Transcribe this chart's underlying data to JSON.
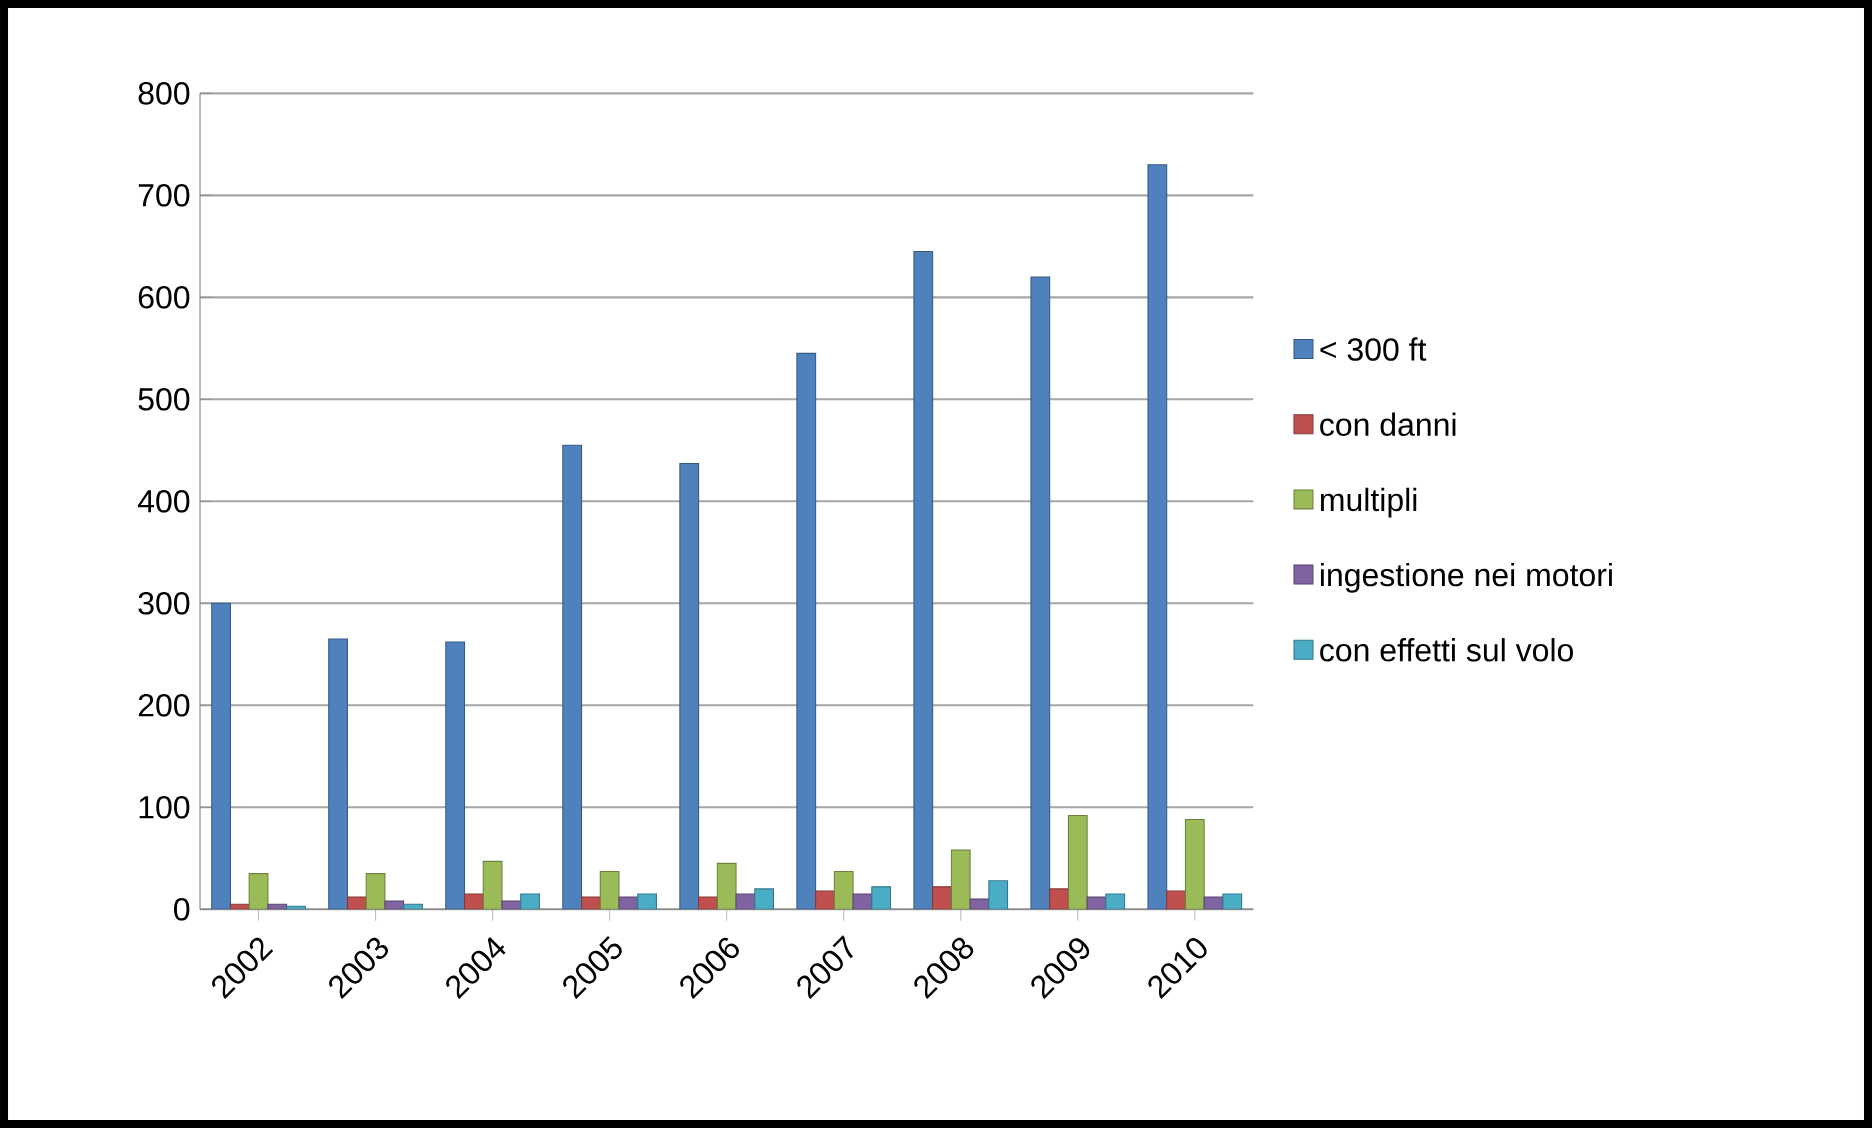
{
  "chart_data": {
    "type": "bar",
    "categories": [
      "2002",
      "2003",
      "2004",
      "2005",
      "2006",
      "2007",
      "2008",
      "2009",
      "2010"
    ],
    "series": [
      {
        "name": "< 300 ft",
        "color": "#4f81bd",
        "values": [
          300,
          265,
          262,
          455,
          437,
          545,
          645,
          620,
          730
        ]
      },
      {
        "name": "con danni",
        "color": "#c0504d",
        "values": [
          5,
          12,
          15,
          12,
          12,
          18,
          22,
          20,
          18
        ]
      },
      {
        "name": "multipli",
        "color": "#9bbb59",
        "values": [
          35,
          35,
          47,
          37,
          45,
          37,
          58,
          92,
          88
        ]
      },
      {
        "name": "ingestione nei motori",
        "color": "#8064a2",
        "values": [
          5,
          8,
          8,
          12,
          15,
          15,
          10,
          12,
          12
        ]
      },
      {
        "name": "con effetti sul volo",
        "color": "#4bacc6",
        "values": [
          3,
          5,
          15,
          15,
          20,
          22,
          28,
          15,
          15
        ]
      }
    ],
    "ylim": [
      0,
      800
    ],
    "yticks": [
      0,
      100,
      200,
      300,
      400,
      500,
      600,
      700,
      800
    ],
    "grid": "y",
    "legend": "right"
  }
}
